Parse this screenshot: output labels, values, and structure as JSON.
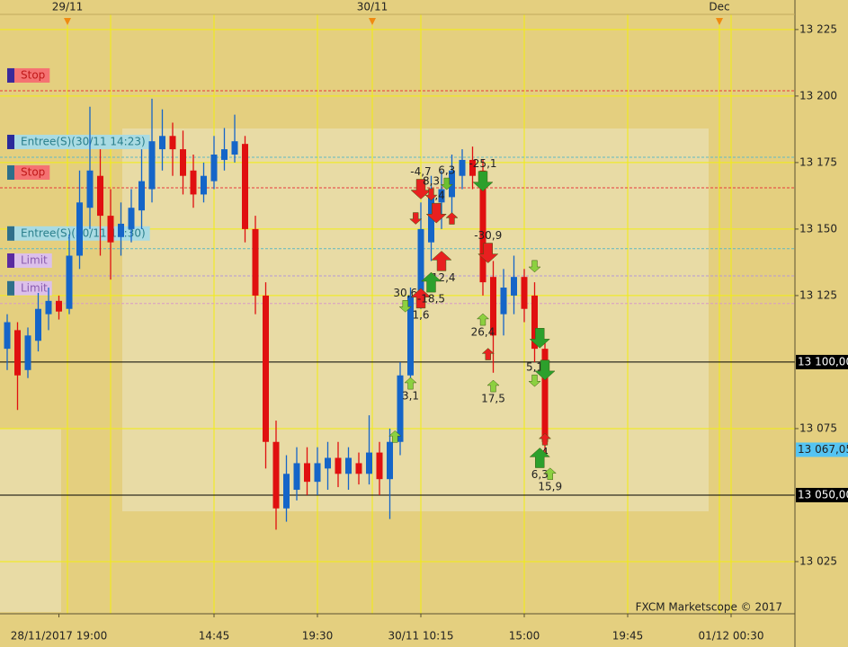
{
  "chart_data": {
    "type": "candlestick",
    "categories": [
      null,
      null,
      null,
      null,
      null,
      "28/11/2017 19:00",
      null,
      null,
      null,
      null,
      null,
      null,
      null,
      null,
      null,
      null,
      null,
      null,
      null,
      null,
      "14:45",
      null,
      null,
      null,
      null,
      null,
      null,
      null,
      null,
      null,
      "19:30",
      null,
      null,
      null,
      null,
      null,
      null,
      null,
      null,
      null,
      "30/11 10:15",
      null,
      null,
      null,
      null,
      null,
      null,
      null,
      null,
      null,
      "15:00",
      null,
      null,
      null,
      null,
      null,
      null,
      null,
      null,
      null,
      "19:45",
      null,
      null,
      null,
      null,
      null,
      null,
      null,
      null,
      null,
      "01/12 00:30",
      null,
      null,
      null,
      null,
      null,
      null
    ],
    "open": [
      13105,
      13112,
      13097,
      13108,
      13118,
      13123,
      13120,
      13140,
      13158,
      13170,
      13155,
      13147,
      13150,
      13157,
      13165,
      13180,
      13185,
      13180,
      13172,
      13163,
      13168,
      13176,
      13178,
      13182,
      13150,
      13125,
      13070,
      13045,
      13052,
      13062,
      13055,
      13060,
      13064,
      13058,
      13062,
      13058,
      13066,
      13056,
      13070,
      13095,
      13125,
      13145,
      13160,
      13162,
      13170,
      13176,
      13172,
      13132,
      13118,
      13125,
      13132,
      13125,
      13105,
      null,
      null,
      null,
      null,
      null,
      null,
      null,
      null,
      null,
      null,
      null,
      null,
      null,
      null,
      null,
      null,
      null,
      null,
      null,
      null,
      null,
      null,
      null,
      null
    ],
    "high": [
      13118,
      13115,
      13113,
      13126,
      13128,
      13125,
      13148,
      13172,
      13196,
      13180,
      13165,
      13160,
      13165,
      13180,
      13199,
      13195,
      13190,
      13187,
      13178,
      13175,
      13185,
      13188,
      13193,
      13185,
      13155,
      13130,
      13078,
      13065,
      13068,
      13068,
      13068,
      13070,
      13070,
      13068,
      13066,
      13080,
      13070,
      13075,
      13100,
      13128,
      13160,
      13170,
      13172,
      13178,
      13180,
      13181,
      13176,
      13138,
      13135,
      13140,
      13135,
      13130,
      13108,
      null,
      null,
      null,
      null,
      null,
      null,
      null,
      null,
      null,
      null,
      null,
      null,
      null,
      null,
      null,
      null,
      null,
      null,
      null,
      null,
      null,
      null,
      null,
      null
    ],
    "low": [
      13097,
      13082,
      13094,
      13104,
      13112,
      13116,
      13118,
      13135,
      13150,
      13140,
      13131,
      13140,
      13145,
      13150,
      13160,
      13172,
      13170,
      13163,
      13158,
      13160,
      13165,
      13172,
      13175,
      13145,
      13118,
      13060,
      13037,
      13040,
      13048,
      13050,
      13050,
      13052,
      13053,
      13052,
      13054,
      13054,
      13050,
      13041,
      13065,
      13090,
      13120,
      13138,
      13150,
      13155,
      13165,
      13165,
      13125,
      13096,
      13110,
      13118,
      13115,
      13100,
      13066,
      null,
      null,
      null,
      null,
      null,
      null,
      null,
      null,
      null,
      null,
      null,
      null,
      null,
      null,
      null,
      null,
      null,
      null,
      null,
      null,
      null,
      null,
      null,
      null
    ],
    "close": [
      13115,
      13095,
      13110,
      13120,
      13123,
      13119,
      13140,
      13160,
      13172,
      13155,
      13145,
      13152,
      13158,
      13168,
      13183,
      13185,
      13180,
      13170,
      13163,
      13170,
      13178,
      13180,
      13183,
      13150,
      13125,
      13070,
      13045,
      13058,
      13062,
      13055,
      13062,
      13064,
      13058,
      13064,
      13058,
      13066,
      13056,
      13070,
      13095,
      13125,
      13150,
      13162,
      13165,
      13172,
      13176,
      13170,
      13130,
      13110,
      13128,
      13132,
      13120,
      13105,
      13070,
      null,
      null,
      null,
      null,
      null,
      null,
      null,
      null,
      null,
      null,
      null,
      null,
      null,
      null,
      null,
      null,
      null,
      null,
      null,
      null,
      null,
      null,
      null,
      null
    ],
    "up_color": "#1565c8",
    "down_color": "#e01010",
    "ylim": [
      13005.4,
      13236.1
    ],
    "yticks": [
      {
        "value": 13025,
        "label": "13 025"
      },
      {
        "value": 13075,
        "label": "13 075"
      },
      {
        "value": 13125,
        "label": "13 125"
      },
      {
        "value": 13150,
        "label": "13 150"
      },
      {
        "value": 13175,
        "label": "13 175"
      },
      {
        "value": 13200,
        "label": "13 200"
      },
      {
        "value": 13225,
        "label": "13 225"
      }
    ],
    "grid": true,
    "hlines": [
      {
        "value": 13100,
        "label": "13 100,00"
      },
      {
        "value": 13050,
        "label": "13 050,00"
      }
    ],
    "last_price": {
      "value": 13067.05,
      "label": "13 067,05"
    },
    "top_labels": [
      "29/11",
      "30/11",
      "Dec"
    ],
    "orders": [
      {
        "label": "Stop",
        "price": 13202,
        "color": "#e83a3a",
        "label_color": "#f57272",
        "text_color": "#c01818",
        "marker_color": "#3a2a9a"
      },
      {
        "label": "Entree(S)(30/11 14:23)",
        "price": 13177,
        "color": "#5fb8c4",
        "label_color": "#a9dbe3",
        "text_color": "#2a7f8c",
        "marker_color": "#2a2a9a"
      },
      {
        "label": "Stop",
        "price": 13165.5,
        "color": "#e83a3a",
        "label_color": "#f57272",
        "text_color": "#c01818",
        "marker_color": "#2f6f8a"
      },
      {
        "label": "Entree(S)(30/11 15:30)",
        "price": 13142.6,
        "color": "#5fb8c4",
        "label_color": "#a9dbe3",
        "text_color": "#2a7f8c",
        "marker_color": "#2f6f8a"
      },
      {
        "label": "Limit",
        "price": 13132.4,
        "color": "#b59ad6",
        "label_color": "#dcc0ea",
        "text_color": "#8a5cb0",
        "marker_color": "#5a2aa0"
      },
      {
        "label": "Limit",
        "price": 13122,
        "color": "#d89ac8",
        "label_color": "#dcc0ea",
        "text_color": "#8a5cb0",
        "marker_color": "#2f6f8a"
      }
    ],
    "trades": [
      {
        "label": "-4,7",
        "index": 40,
        "price": 13165,
        "direction": "down",
        "color": "#e82020",
        "size": "big"
      },
      {
        "label": "3,4",
        "index": 41.5,
        "price": 13156,
        "direction": "down",
        "color": "#e82020",
        "size": "big"
      },
      {
        "label": "8,3",
        "index": 41,
        "price": 13163,
        "direction": "down",
        "color": "#e82020",
        "size": "small"
      },
      {
        "label": "6,3",
        "index": 42.5,
        "price": 13167,
        "direction": "down",
        "color": "#6cc030",
        "size": "small"
      },
      {
        "label": "-25,1",
        "index": 46,
        "price": 13168,
        "direction": "down",
        "color": "#2ca02c",
        "size": "big"
      },
      {
        "label": "-30,9",
        "index": 46.5,
        "price": 13141,
        "direction": "down",
        "color": "#e82020",
        "size": "big"
      },
      {
        "label": "-12,4",
        "index": 42,
        "price": 13138,
        "direction": "up",
        "color": "#e82020",
        "size": "big"
      },
      {
        "label": "30,6",
        "index": 38.5,
        "price": 13121,
        "direction": "down",
        "color": "#8cd040",
        "size": "small"
      },
      {
        "label": "1,6",
        "index": 40,
        "price": 13124,
        "direction": "up",
        "color": "#e82020",
        "size": "big"
      },
      {
        "label": "-18,5",
        "index": 41,
        "price": 13130,
        "direction": "up",
        "color": "#2ca02c",
        "size": "big"
      },
      {
        "label": "3,1",
        "index": 39,
        "price": 13092,
        "direction": "up",
        "color": "#8cd040",
        "size": "small"
      },
      {
        "label": "26,4",
        "index": 46,
        "price": 13116,
        "direction": "up",
        "color": "#8cd040",
        "size": "small"
      },
      {
        "label": "17,5",
        "index": 47,
        "price": 13091,
        "direction": "up",
        "color": "#8cd040",
        "size": "small"
      },
      {
        "label": "5,1",
        "index": 51,
        "price": 13093,
        "direction": "down",
        "color": "#8cd040",
        "size": "small"
      },
      {
        "label": "4",
        "index": 52,
        "price": 13071,
        "direction": "up",
        "color": "#e82020",
        "size": "small"
      },
      {
        "label": "6,3",
        "index": 51.5,
        "price": 13064,
        "direction": "up",
        "color": "#2ca02c",
        "size": "big"
      },
      {
        "label": "15,9",
        "index": 52.5,
        "price": 13058,
        "direction": "up",
        "color": "#8cd040",
        "size": "small"
      },
      {
        "index": 51.5,
        "price": 13109,
        "direction": "down",
        "color": "#2ca02c",
        "size": "big"
      },
      {
        "index": 52,
        "price": 13097,
        "direction": "down",
        "color": "#2ca02c",
        "size": "big"
      },
      {
        "index": 39.5,
        "price": 13154,
        "direction": "down",
        "color": "#e82020",
        "size": "small"
      },
      {
        "index": 43,
        "price": 13154,
        "direction": "up",
        "color": "#e82020",
        "size": "small"
      },
      {
        "index": 46.5,
        "price": 13103,
        "direction": "up",
        "color": "#e82020",
        "size": "small"
      },
      {
        "index": 51,
        "price": 13136,
        "direction": "down",
        "color": "#8cd040",
        "size": "small"
      },
      {
        "index": 37.5,
        "price": 13072,
        "direction": "up",
        "color": "#8cd040",
        "size": "small"
      }
    ],
    "footer": "FXCM Marketscope © 2017"
  }
}
